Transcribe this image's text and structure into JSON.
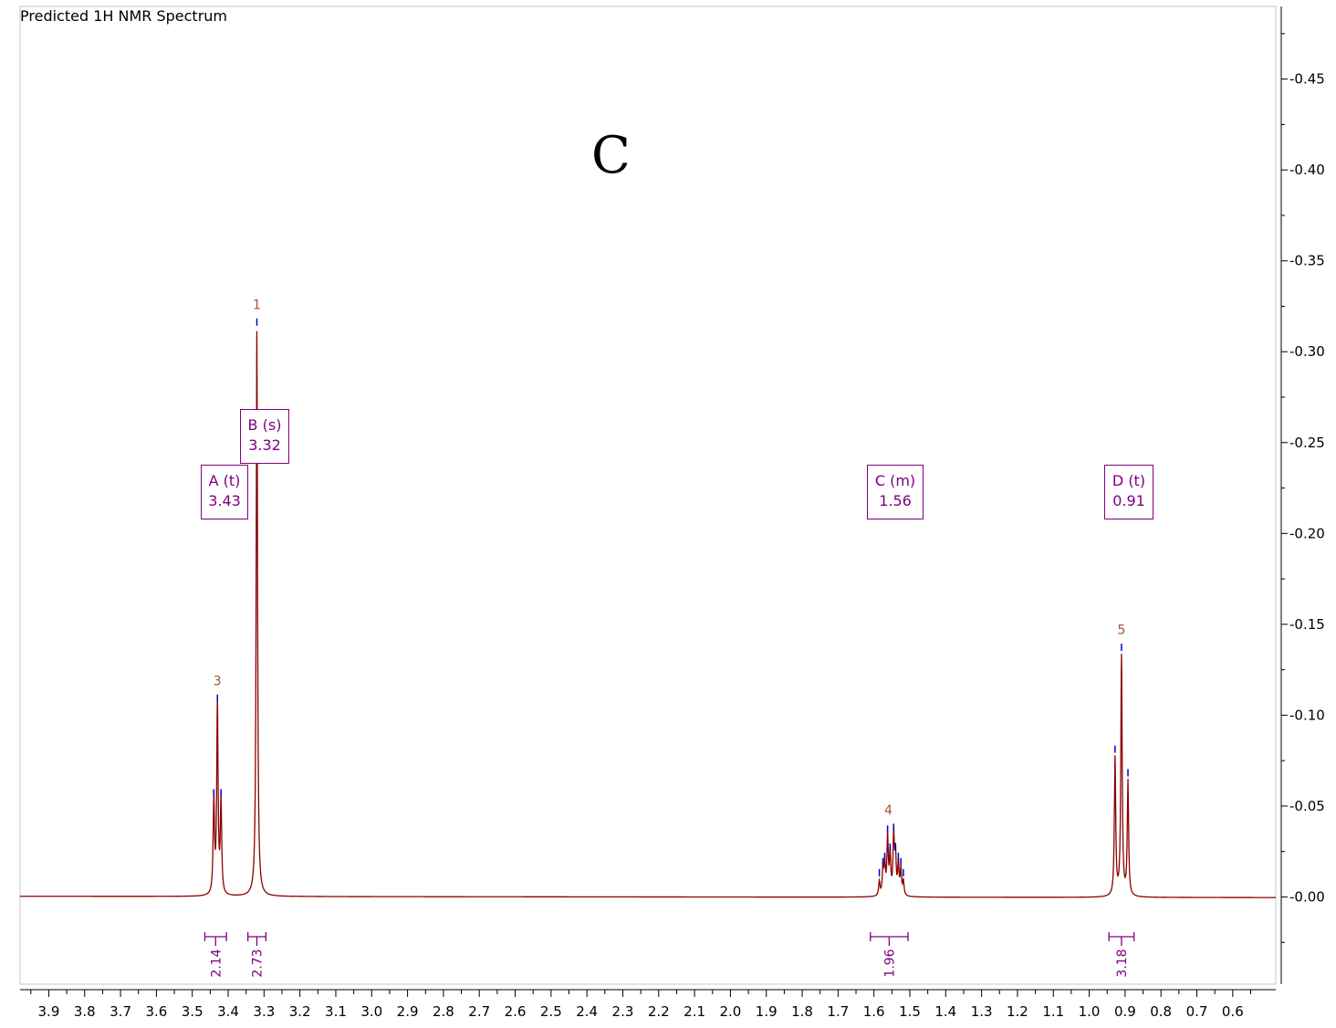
{
  "title": "Predicted 1H NMR Spectrum",
  "annotation_letter": "C",
  "colors": {
    "spectrum": "#8b0000",
    "box": "#800080",
    "peak_number": "#a0522d",
    "peak_tick": "#0000cd",
    "integral": "#800080"
  },
  "chart_data": {
    "type": "line",
    "title": "Predicted 1H NMR Spectrum",
    "xlabel": "",
    "ylabel": "",
    "xlim": [
      3.98,
      0.48
    ],
    "ylim": [
      -0.048,
      0.49
    ],
    "x_reversed": true,
    "x_ticks": [
      "3.9",
      "3.8",
      "3.7",
      "3.6",
      "3.5",
      "3.4",
      "3.3",
      "3.2",
      "3.1",
      "3.0",
      "2.9",
      "2.8",
      "2.7",
      "2.6",
      "2.5",
      "2.4",
      "2.3",
      "2.2",
      "2.1",
      "2.0",
      "1.9",
      "1.8",
      "1.7",
      "1.6",
      "1.5",
      "1.4",
      "1.3",
      "1.2",
      "1.1",
      "1.0",
      "0.9",
      "0.8",
      "0.7",
      "0.6"
    ],
    "y_ticks": [
      "0.00",
      "0.05",
      "0.10",
      "0.15",
      "0.20",
      "0.25",
      "0.30",
      "0.35",
      "0.40",
      "0.45"
    ],
    "y_axis_side": "right",
    "peaks": [
      {
        "label": "1",
        "shift": 3.32,
        "height": 0.311,
        "lines": [
          {
            "ppm": 3.32,
            "h": 0.311
          }
        ]
      },
      {
        "label": "3",
        "shift": 3.43,
        "height": 0.104,
        "lines": [
          {
            "ppm": 3.44,
            "h": 0.052
          },
          {
            "ppm": 3.43,
            "h": 0.104
          },
          {
            "ppm": 3.42,
            "h": 0.052
          }
        ]
      },
      {
        "label": "4",
        "shift": 1.56,
        "height": 0.033,
        "lines": [
          {
            "ppm": 1.585,
            "h": 0.008
          },
          {
            "ppm": 1.575,
            "h": 0.014
          },
          {
            "ppm": 1.57,
            "h": 0.017
          },
          {
            "ppm": 1.562,
            "h": 0.032
          },
          {
            "ppm": 1.555,
            "h": 0.022
          },
          {
            "ppm": 1.545,
            "h": 0.033
          },
          {
            "ppm": 1.54,
            "h": 0.022
          },
          {
            "ppm": 1.532,
            "h": 0.017
          },
          {
            "ppm": 1.525,
            "h": 0.014
          },
          {
            "ppm": 1.518,
            "h": 0.008
          }
        ]
      },
      {
        "label": "5",
        "shift": 0.91,
        "height": 0.132,
        "lines": [
          {
            "ppm": 0.928,
            "h": 0.076
          },
          {
            "ppm": 0.91,
            "h": 0.132
          },
          {
            "ppm": 0.892,
            "h": 0.063
          }
        ]
      }
    ],
    "multiplets": [
      {
        "name": "A (t)",
        "shift": "3.43",
        "x": 3.43
      },
      {
        "name": "B (s)",
        "shift": "3.32",
        "x": 3.32
      },
      {
        "name": "C (m)",
        "shift": "1.56",
        "x": 1.56
      },
      {
        "name": "D (t)",
        "shift": "0.91",
        "x": 0.91
      }
    ],
    "integrals": [
      {
        "value": "2.14",
        "from": 3.465,
        "to": 3.405
      },
      {
        "value": "2.73",
        "from": 3.345,
        "to": 3.295
      },
      {
        "value": "1.96",
        "from": 1.61,
        "to": 1.505
      },
      {
        "value": "3.18",
        "from": 0.945,
        "to": 0.875
      }
    ]
  }
}
